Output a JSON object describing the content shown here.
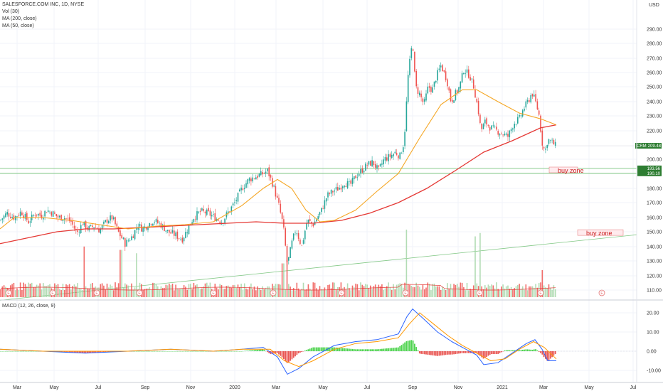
{
  "legend": {
    "title": "SALESFORCE.COM INC, 1D, NYSE",
    "vol": "Vol (30)",
    "ma200": "MA (200, close)",
    "ma50": "MA (50, close)",
    "macd": "MACD (12, 26, close, 9)"
  },
  "currency": "USD",
  "price_tag": {
    "symbol": "CRM",
    "value": "209.48"
  },
  "level_tags": [
    "193.56",
    "190.10"
  ],
  "zones": [
    "buy zone",
    "buy zone"
  ],
  "colors": {
    "up": "#26a69a",
    "down": "#ef5350",
    "ma200": "#e53935",
    "ma50": "#f5a623",
    "macd": "#2962ff",
    "signal": "#ff9800",
    "hist_up": "#33cc33",
    "hist_down": "#e53935",
    "level": "#66bb6a",
    "zone": "#ffebee",
    "tag": "#2e7d32"
  },
  "chart_data": {
    "type": "candlestick",
    "x_ticks": [
      "Mar",
      "May",
      "Jul",
      "Sep",
      "Nov",
      "2020",
      "Mar",
      "May",
      "Jul",
      "Sep",
      "Nov",
      "2021",
      "Mar",
      "May",
      "Jul"
    ],
    "y_ticks": [
      "290.00",
      "280.00",
      "270.00",
      "260.00",
      "250.00",
      "240.00",
      "230.00",
      "220.00",
      "200.00",
      "180.00",
      "170.00",
      "160.00",
      "150.00",
      "140.00",
      "130.00",
      "120.00",
      "110.00"
    ],
    "macd_ticks": [
      "20.00",
      "10.00",
      "0.00",
      "-10.00"
    ],
    "horizontal_levels": [
      193.56,
      190.1
    ],
    "close_last": 209.48,
    "trend_line": {
      "from": [
        "2019-03",
        103
      ],
      "to": [
        "2021-07",
        148
      ]
    },
    "zone_labels": [
      {
        "text": "buy zone",
        "level": 192
      },
      {
        "text": "buy zone",
        "level": 149
      }
    ],
    "price_path": [
      [
        0,
        158
      ],
      [
        10,
        163
      ],
      [
        20,
        160
      ],
      [
        30,
        164
      ],
      [
        40,
        157
      ],
      [
        50,
        163
      ],
      [
        58,
        161
      ],
      [
        66,
        165
      ],
      [
        74,
        163
      ],
      [
        82,
        160
      ],
      [
        90,
        160
      ],
      [
        100,
        157
      ],
      [
        108,
        149
      ],
      [
        116,
        156
      ],
      [
        124,
        152
      ],
      [
        132,
        154
      ],
      [
        140,
        151
      ],
      [
        150,
        158
      ],
      [
        158,
        160
      ],
      [
        166,
        150
      ],
      [
        176,
        142
      ],
      [
        186,
        147
      ],
      [
        194,
        155
      ],
      [
        200,
        152
      ],
      [
        208,
        155
      ],
      [
        216,
        158
      ],
      [
        226,
        155
      ],
      [
        236,
        150
      ],
      [
        246,
        148
      ],
      [
        256,
        145
      ],
      [
        264,
        152
      ],
      [
        272,
        160
      ],
      [
        282,
        164
      ],
      [
        292,
        163
      ],
      [
        302,
        160
      ],
      [
        312,
        157
      ],
      [
        320,
        163
      ],
      [
        330,
        170
      ],
      [
        340,
        180
      ],
      [
        350,
        186
      ],
      [
        360,
        188
      ],
      [
        370,
        190
      ],
      [
        376,
        192
      ],
      [
        384,
        182
      ],
      [
        392,
        168
      ],
      [
        398,
        155
      ],
      [
        404,
        127
      ],
      [
        410,
        142
      ],
      [
        416,
        152
      ],
      [
        424,
        140
      ],
      [
        432,
        158
      ],
      [
        440,
        155
      ],
      [
        446,
        160
      ],
      [
        452,
        165
      ],
      [
        460,
        175
      ],
      [
        468,
        178
      ],
      [
        476,
        180
      ],
      [
        484,
        184
      ],
      [
        492,
        182
      ],
      [
        500,
        188
      ],
      [
        508,
        192
      ],
      [
        516,
        196
      ],
      [
        524,
        198
      ],
      [
        532,
        192
      ],
      [
        540,
        200
      ],
      [
        548,
        202
      ],
      [
        556,
        205
      ],
      [
        562,
        202
      ],
      [
        568,
        212
      ],
      [
        574,
        260
      ],
      [
        580,
        282
      ],
      [
        584,
        250
      ],
      [
        590,
        245
      ],
      [
        596,
        238
      ],
      [
        602,
        250
      ],
      [
        608,
        248
      ],
      [
        614,
        258
      ],
      [
        620,
        265
      ],
      [
        628,
        255
      ],
      [
        634,
        240
      ],
      [
        640,
        245
      ],
      [
        646,
        250
      ],
      [
        652,
        262
      ],
      [
        660,
        258
      ],
      [
        666,
        250
      ],
      [
        672,
        235
      ],
      [
        676,
        220
      ],
      [
        682,
        226
      ],
      [
        690,
        222
      ],
      [
        698,
        220
      ],
      [
        706,
        218
      ],
      [
        714,
        216
      ],
      [
        722,
        225
      ],
      [
        730,
        228
      ],
      [
        736,
        235
      ],
      [
        742,
        240
      ],
      [
        748,
        246
      ],
      [
        754,
        238
      ],
      [
        758,
        230
      ],
      [
        762,
        212
      ],
      [
        766,
        205
      ],
      [
        770,
        214
      ],
      [
        776,
        212
      ],
      [
        782,
        209
      ]
    ],
    "ma200_path": [
      [
        0,
        142
      ],
      [
        40,
        146
      ],
      [
        80,
        150
      ],
      [
        120,
        152
      ],
      [
        160,
        152
      ],
      [
        200,
        153
      ],
      [
        240,
        154
      ],
      [
        280,
        155
      ],
      [
        320,
        156
      ],
      [
        360,
        157
      ],
      [
        400,
        156
      ],
      [
        440,
        156
      ],
      [
        480,
        158
      ],
      [
        520,
        163
      ],
      [
        560,
        170
      ],
      [
        600,
        180
      ],
      [
        640,
        192
      ],
      [
        680,
        205
      ],
      [
        720,
        213
      ],
      [
        760,
        222
      ],
      [
        782,
        224
      ]
    ],
    "ma50_path": [
      [
        0,
        152
      ],
      [
        20,
        160
      ],
      [
        60,
        160
      ],
      [
        100,
        158
      ],
      [
        140,
        155
      ],
      [
        180,
        152
      ],
      [
        220,
        154
      ],
      [
        260,
        155
      ],
      [
        300,
        157
      ],
      [
        340,
        168
      ],
      [
        370,
        180
      ],
      [
        390,
        186
      ],
      [
        410,
        180
      ],
      [
        430,
        165
      ],
      [
        450,
        157
      ],
      [
        470,
        158
      ],
      [
        500,
        165
      ],
      [
        530,
        178
      ],
      [
        560,
        190
      ],
      [
        590,
        215
      ],
      [
        620,
        238
      ],
      [
        650,
        248
      ],
      [
        670,
        248
      ],
      [
        700,
        240
      ],
      [
        730,
        232
      ],
      [
        760,
        228
      ],
      [
        782,
        224
      ]
    ],
    "volume_spikes": [
      [
        118,
        0.75
      ],
      [
        170,
        0.7
      ],
      [
        192,
        0.65
      ],
      [
        398,
        0.5
      ],
      [
        403,
        0.55
      ],
      [
        572,
        1.0
      ],
      [
        668,
        0.9
      ],
      [
        675,
        0.95
      ],
      [
        762,
        0.4
      ]
    ],
    "earnings_markers": [
      12,
      74,
      136,
      196,
      300,
      384,
      480,
      570,
      674,
      760,
      846
    ],
    "macd_path": [
      [
        0,
        1
      ],
      [
        60,
        0
      ],
      [
        120,
        -1
      ],
      [
        180,
        0
      ],
      [
        240,
        1
      ],
      [
        300,
        0
      ],
      [
        340,
        1
      ],
      [
        370,
        2
      ],
      [
        390,
        -3
      ],
      [
        404,
        -12
      ],
      [
        420,
        -9
      ],
      [
        440,
        -3
      ],
      [
        470,
        3
      ],
      [
        500,
        5
      ],
      [
        530,
        6
      ],
      [
        560,
        9
      ],
      [
        572,
        18
      ],
      [
        580,
        22
      ],
      [
        595,
        17
      ],
      [
        615,
        10
      ],
      [
        635,
        5
      ],
      [
        655,
        1
      ],
      [
        670,
        -2
      ],
      [
        680,
        -7
      ],
      [
        700,
        -6
      ],
      [
        720,
        -1
      ],
      [
        740,
        4
      ],
      [
        752,
        6
      ],
      [
        762,
        1
      ],
      [
        770,
        -5
      ],
      [
        782,
        -5
      ]
    ],
    "signal_path": [
      [
        0,
        1
      ],
      [
        60,
        0
      ],
      [
        120,
        0
      ],
      [
        180,
        0
      ],
      [
        240,
        1
      ],
      [
        300,
        0
      ],
      [
        340,
        1
      ],
      [
        380,
        1
      ],
      [
        400,
        -5
      ],
      [
        420,
        -8
      ],
      [
        440,
        -5
      ],
      [
        470,
        1
      ],
      [
        500,
        4
      ],
      [
        530,
        5
      ],
      [
        560,
        7
      ],
      [
        575,
        14
      ],
      [
        590,
        20
      ],
      [
        610,
        14
      ],
      [
        630,
        8
      ],
      [
        650,
        3
      ],
      [
        670,
        -1
      ],
      [
        690,
        -5
      ],
      [
        710,
        -4
      ],
      [
        730,
        1
      ],
      [
        750,
        5
      ],
      [
        765,
        2
      ],
      [
        782,
        -4
      ]
    ]
  }
}
